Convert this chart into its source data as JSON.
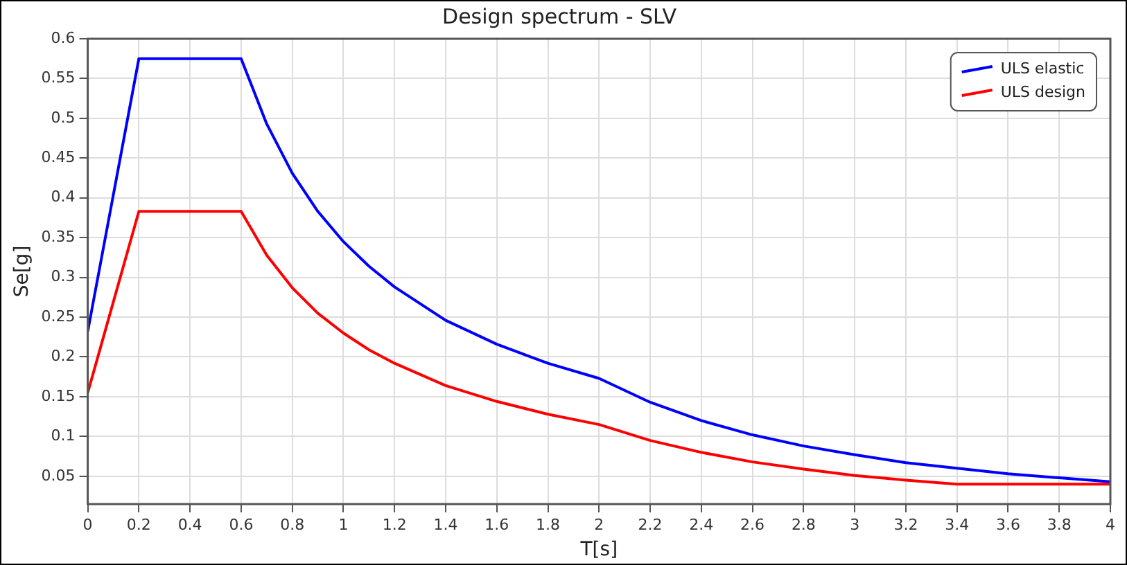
{
  "chart_data": {
    "type": "line",
    "title": "Design spectrum - SLV",
    "xlabel": "T[s]",
    "ylabel": "Se[g]",
    "xlim": [
      0,
      4
    ],
    "xticks": [
      0,
      0.2,
      0.4,
      0.6,
      0.8,
      1,
      1.2,
      1.4,
      1.6,
      1.8,
      2,
      2.2,
      2.4,
      2.6,
      2.8,
      3,
      3.2,
      3.4,
      3.6,
      3.8,
      4
    ],
    "ylim": [
      0.015,
      0.6
    ],
    "yticks": [
      0.05,
      0.1,
      0.15,
      0.2,
      0.25,
      0.3,
      0.35,
      0.4,
      0.45,
      0.5,
      0.55,
      0.6
    ],
    "grid": true,
    "legend": "top right",
    "marker": "none",
    "line_style": "solid",
    "x": [
      0,
      0.2,
      0.6,
      0.7,
      0.8,
      0.9,
      1,
      1.1,
      1.2,
      1.4,
      1.6,
      1.8,
      2,
      2.2,
      2.4,
      2.6,
      2.8,
      3,
      3.2,
      3.4,
      3.6,
      3.8,
      4
    ],
    "series": [
      {
        "name": "ULS elastic",
        "color": "#0000ff",
        "values": [
          0.232,
          0.575,
          0.575,
          0.493,
          0.431,
          0.383,
          0.345,
          0.314,
          0.288,
          0.246,
          0.216,
          0.192,
          0.173,
          0.143,
          0.12,
          0.102,
          0.088,
          0.077,
          0.067,
          0.06,
          0.053,
          0.048,
          0.043
        ]
      },
      {
        "name": "ULS design",
        "color": "#ff0000",
        "values": [
          0.155,
          0.383,
          0.383,
          0.328,
          0.287,
          0.255,
          0.23,
          0.209,
          0.192,
          0.164,
          0.144,
          0.128,
          0.115,
          0.095,
          0.08,
          0.068,
          0.059,
          0.051,
          0.045,
          0.04,
          0.04,
          0.04,
          0.04
        ]
      }
    ]
  }
}
